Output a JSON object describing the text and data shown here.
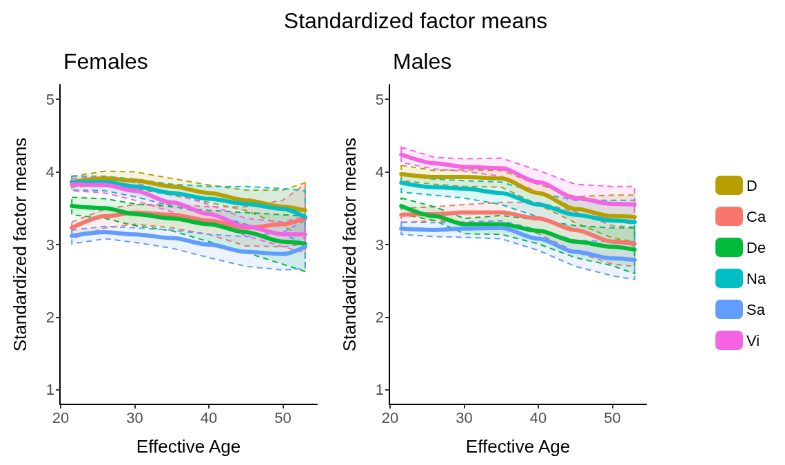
{
  "chart_data": [
    {
      "type": "line",
      "subtitle": "Females",
      "xlabel": "Effective Age",
      "ylabel": "Standardized factor means",
      "x": [
        21.5,
        26,
        30,
        35,
        40,
        45,
        50,
        53
      ],
      "xlim": [
        19.9,
        54.6
      ],
      "xticks": [
        20,
        30,
        40,
        50
      ],
      "ylim": [
        0.8,
        5.2
      ],
      "yticks": [
        1,
        2,
        3,
        4,
        5
      ],
      "marker": "none",
      "line_style": "solid",
      "series": [
        {
          "color": "#b79f00",
          "values": [
            3.86,
            3.91,
            3.88,
            3.8,
            3.71,
            3.61,
            3.52,
            3.47
          ],
          "lower": [
            3.79,
            3.82,
            3.77,
            3.68,
            3.58,
            3.47,
            3.26,
            3.08
          ],
          "upper": [
            3.94,
            4.01,
            4.0,
            3.91,
            3.82,
            3.75,
            3.75,
            3.85
          ]
        },
        {
          "color": "#f8766d",
          "values": [
            3.23,
            3.39,
            3.44,
            3.41,
            3.33,
            3.23,
            3.28,
            3.36
          ],
          "lower": [
            3.08,
            3.23,
            3.28,
            3.23,
            3.14,
            2.98,
            2.97,
            3.01
          ],
          "upper": [
            3.31,
            3.49,
            3.55,
            3.55,
            3.52,
            3.52,
            3.61,
            3.83
          ]
        },
        {
          "color": "#00ba38",
          "values": [
            3.53,
            3.5,
            3.42,
            3.36,
            3.28,
            3.17,
            3.04,
            3.01
          ],
          "lower": [
            3.41,
            3.36,
            3.26,
            3.19,
            3.04,
            2.89,
            2.73,
            2.63
          ],
          "upper": [
            3.65,
            3.63,
            3.56,
            3.52,
            3.47,
            3.44,
            3.41,
            3.39
          ]
        },
        {
          "color": "#00bfc4",
          "values": [
            3.86,
            3.86,
            3.8,
            3.71,
            3.63,
            3.56,
            3.49,
            3.38
          ],
          "lower": [
            3.75,
            3.74,
            3.66,
            3.53,
            3.42,
            3.28,
            3.14,
            3.01
          ],
          "upper": [
            3.94,
            3.94,
            3.9,
            3.83,
            3.8,
            3.8,
            3.77,
            3.74
          ]
        },
        {
          "color": "#619cff",
          "values": [
            3.12,
            3.17,
            3.14,
            3.09,
            3.0,
            2.9,
            2.87,
            2.97
          ],
          "lower": [
            3.01,
            3.08,
            3.03,
            2.95,
            2.82,
            2.7,
            2.65,
            2.67
          ],
          "upper": [
            3.2,
            3.25,
            3.23,
            3.2,
            3.14,
            3.11,
            3.17,
            3.33
          ]
        },
        {
          "color": "#f564e3",
          "values": [
            3.83,
            3.82,
            3.74,
            3.58,
            3.42,
            3.25,
            3.14,
            3.14
          ],
          "lower": [
            3.74,
            3.71,
            3.61,
            3.45,
            3.3,
            3.12,
            2.97,
            2.89
          ],
          "upper": [
            3.91,
            3.93,
            3.85,
            3.71,
            3.55,
            3.36,
            3.31,
            3.39
          ]
        }
      ]
    },
    {
      "type": "line",
      "title": "Standardized factor means",
      "subtitle": "Males",
      "xlabel": "Effective Age",
      "ylabel": "Standardized factor means",
      "x": [
        21.5,
        26,
        30,
        35,
        40,
        45,
        50,
        53
      ],
      "xlim": [
        19.9,
        54.6
      ],
      "xticks": [
        20,
        30,
        40,
        50
      ],
      "ylim": [
        0.8,
        5.2
      ],
      "yticks": [
        1,
        2,
        3,
        4,
        5
      ],
      "marker": "none",
      "line_style": "solid",
      "legend": "right",
      "series": [
        {
          "name": "D",
          "color": "#b79f00",
          "values": [
            3.97,
            3.93,
            3.93,
            3.91,
            3.71,
            3.49,
            3.39,
            3.38
          ],
          "lower": [
            3.88,
            3.83,
            3.8,
            3.79,
            3.55,
            3.3,
            3.09,
            3.04
          ],
          "upper": [
            4.09,
            4.02,
            4.03,
            4.02,
            3.83,
            3.66,
            3.68,
            3.68
          ]
        },
        {
          "name": "Ca",
          "color": "#f8766d",
          "values": [
            3.41,
            3.42,
            3.44,
            3.44,
            3.36,
            3.2,
            3.04,
            3.01
          ],
          "lower": [
            3.3,
            3.33,
            3.3,
            3.28,
            3.15,
            2.9,
            2.73,
            2.7
          ],
          "upper": [
            3.5,
            3.52,
            3.55,
            3.58,
            3.58,
            3.45,
            3.26,
            3.24
          ]
        },
        {
          "name": "De",
          "color": "#00ba38",
          "values": [
            3.53,
            3.39,
            3.28,
            3.28,
            3.19,
            3.04,
            2.97,
            2.93
          ],
          "lower": [
            3.42,
            3.33,
            3.15,
            3.14,
            3.01,
            2.82,
            2.71,
            2.6
          ],
          "upper": [
            3.64,
            3.52,
            3.36,
            3.4,
            3.34,
            3.26,
            3.23,
            3.23
          ]
        },
        {
          "name": "Na",
          "color": "#00bfc4",
          "values": [
            3.85,
            3.79,
            3.77,
            3.71,
            3.55,
            3.41,
            3.33,
            3.31
          ],
          "lower": [
            3.72,
            3.68,
            3.64,
            3.55,
            3.38,
            3.21,
            3.04,
            2.98
          ],
          "upper": [
            3.96,
            3.9,
            3.88,
            3.86,
            3.71,
            3.61,
            3.61,
            3.61
          ]
        },
        {
          "name": "Sa",
          "color": "#619cff",
          "values": [
            3.22,
            3.2,
            3.22,
            3.23,
            3.08,
            2.9,
            2.81,
            2.79
          ],
          "lower": [
            3.14,
            3.11,
            3.1,
            3.08,
            2.92,
            2.7,
            2.57,
            2.52
          ],
          "upper": [
            3.31,
            3.3,
            3.31,
            3.33,
            3.2,
            3.06,
            3.04,
            3.04
          ]
        },
        {
          "name": "Vi",
          "color": "#f564e3",
          "values": [
            4.24,
            4.12,
            4.07,
            4.05,
            3.86,
            3.64,
            3.56,
            3.55
          ],
          "lower": [
            4.13,
            4.04,
            4.01,
            3.94,
            3.72,
            3.5,
            3.33,
            3.28
          ],
          "upper": [
            4.34,
            4.2,
            4.18,
            4.19,
            4.02,
            3.83,
            3.8,
            3.8
          ]
        }
      ]
    }
  ]
}
